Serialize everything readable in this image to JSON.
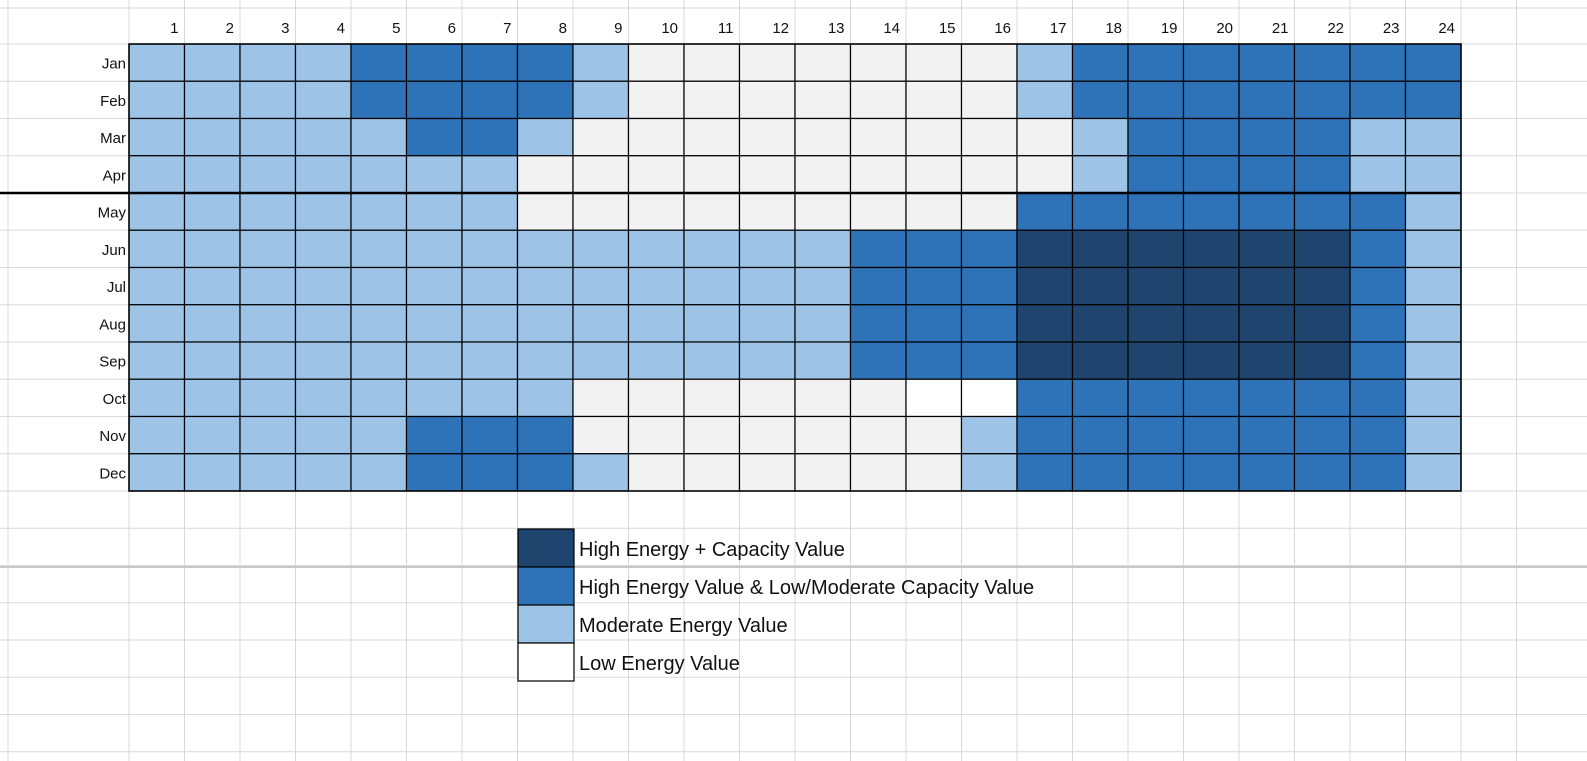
{
  "chart_data": {
    "type": "heatmap",
    "title": "",
    "xlabel": "",
    "ylabel": "",
    "x": [
      "1",
      "2",
      "3",
      "4",
      "5",
      "6",
      "7",
      "8",
      "9",
      "10",
      "11",
      "12",
      "13",
      "14",
      "15",
      "16",
      "17",
      "18",
      "19",
      "20",
      "21",
      "22",
      "23",
      "24"
    ],
    "y": [
      "Jan",
      "Feb",
      "Mar",
      "Apr",
      "May",
      "Jun",
      "Jul",
      "Aug",
      "Sep",
      "Oct",
      "Nov",
      "Dec"
    ],
    "levels": [
      {
        "level": 3,
        "label": "High Energy + Capacity Value",
        "color": "#1f456e"
      },
      {
        "level": 2,
        "label": "High Energy Value & Low/Moderate Capacity Value",
        "color": "#2e72b8"
      },
      {
        "level": 1,
        "label": "Moderate Energy Value",
        "color": "#9dc3e6"
      },
      {
        "level": 0,
        "label": "Low Energy Value",
        "color": "#f2f2f2"
      }
    ],
    "values": [
      [
        1,
        1,
        1,
        1,
        2,
        2,
        2,
        2,
        1,
        0,
        0,
        0,
        0,
        0,
        0,
        0,
        1,
        2,
        2,
        2,
        2,
        2,
        2,
        2
      ],
      [
        1,
        1,
        1,
        1,
        2,
        2,
        2,
        2,
        1,
        0,
        0,
        0,
        0,
        0,
        0,
        0,
        1,
        2,
        2,
        2,
        2,
        2,
        2,
        2
      ],
      [
        1,
        1,
        1,
        1,
        1,
        2,
        2,
        1,
        0,
        0,
        0,
        0,
        0,
        0,
        0,
        0,
        0,
        1,
        2,
        2,
        2,
        2,
        1,
        1
      ],
      [
        1,
        1,
        1,
        1,
        1,
        1,
        1,
        0,
        0,
        0,
        0,
        0,
        0,
        0,
        0,
        0,
        0,
        1,
        2,
        2,
        2,
        2,
        1,
        1
      ],
      [
        1,
        1,
        1,
        1,
        1,
        1,
        1,
        0,
        0,
        0,
        0,
        0,
        0,
        0,
        0,
        0,
        2,
        2,
        2,
        2,
        2,
        2,
        2,
        1
      ],
      [
        1,
        1,
        1,
        1,
        1,
        1,
        1,
        1,
        1,
        1,
        1,
        1,
        1,
        2,
        2,
        2,
        3,
        3,
        3,
        3,
        3,
        3,
        2,
        1
      ],
      [
        1,
        1,
        1,
        1,
        1,
        1,
        1,
        1,
        1,
        1,
        1,
        1,
        1,
        2,
        2,
        2,
        3,
        3,
        3,
        3,
        3,
        3,
        2,
        1
      ],
      [
        1,
        1,
        1,
        1,
        1,
        1,
        1,
        1,
        1,
        1,
        1,
        1,
        1,
        2,
        2,
        2,
        3,
        3,
        3,
        3,
        3,
        3,
        2,
        1
      ],
      [
        1,
        1,
        1,
        1,
        1,
        1,
        1,
        1,
        1,
        1,
        1,
        1,
        1,
        2,
        2,
        2,
        3,
        3,
        3,
        3,
        3,
        3,
        2,
        1
      ],
      [
        1,
        1,
        1,
        1,
        1,
        1,
        1,
        1,
        0,
        0,
        0,
        0,
        0,
        0,
        0,
        0,
        2,
        2,
        2,
        2,
        2,
        2,
        2,
        1
      ],
      [
        1,
        1,
        1,
        1,
        1,
        2,
        2,
        2,
        0,
        0,
        0,
        0,
        0,
        0,
        0,
        1,
        2,
        2,
        2,
        2,
        2,
        2,
        2,
        1
      ],
      [
        1,
        1,
        1,
        1,
        1,
        2,
        2,
        2,
        1,
        0,
        0,
        0,
        0,
        0,
        0,
        1,
        2,
        2,
        2,
        2,
        2,
        2,
        2,
        1
      ]
    ],
    "legend": "bottom-center",
    "grid": true
  },
  "colors": {
    "gridline": "#d9d9d9",
    "border": "#000000",
    "pure_white_cells": "#ffffff",
    "legend_low_swatch": "#ffffff"
  }
}
